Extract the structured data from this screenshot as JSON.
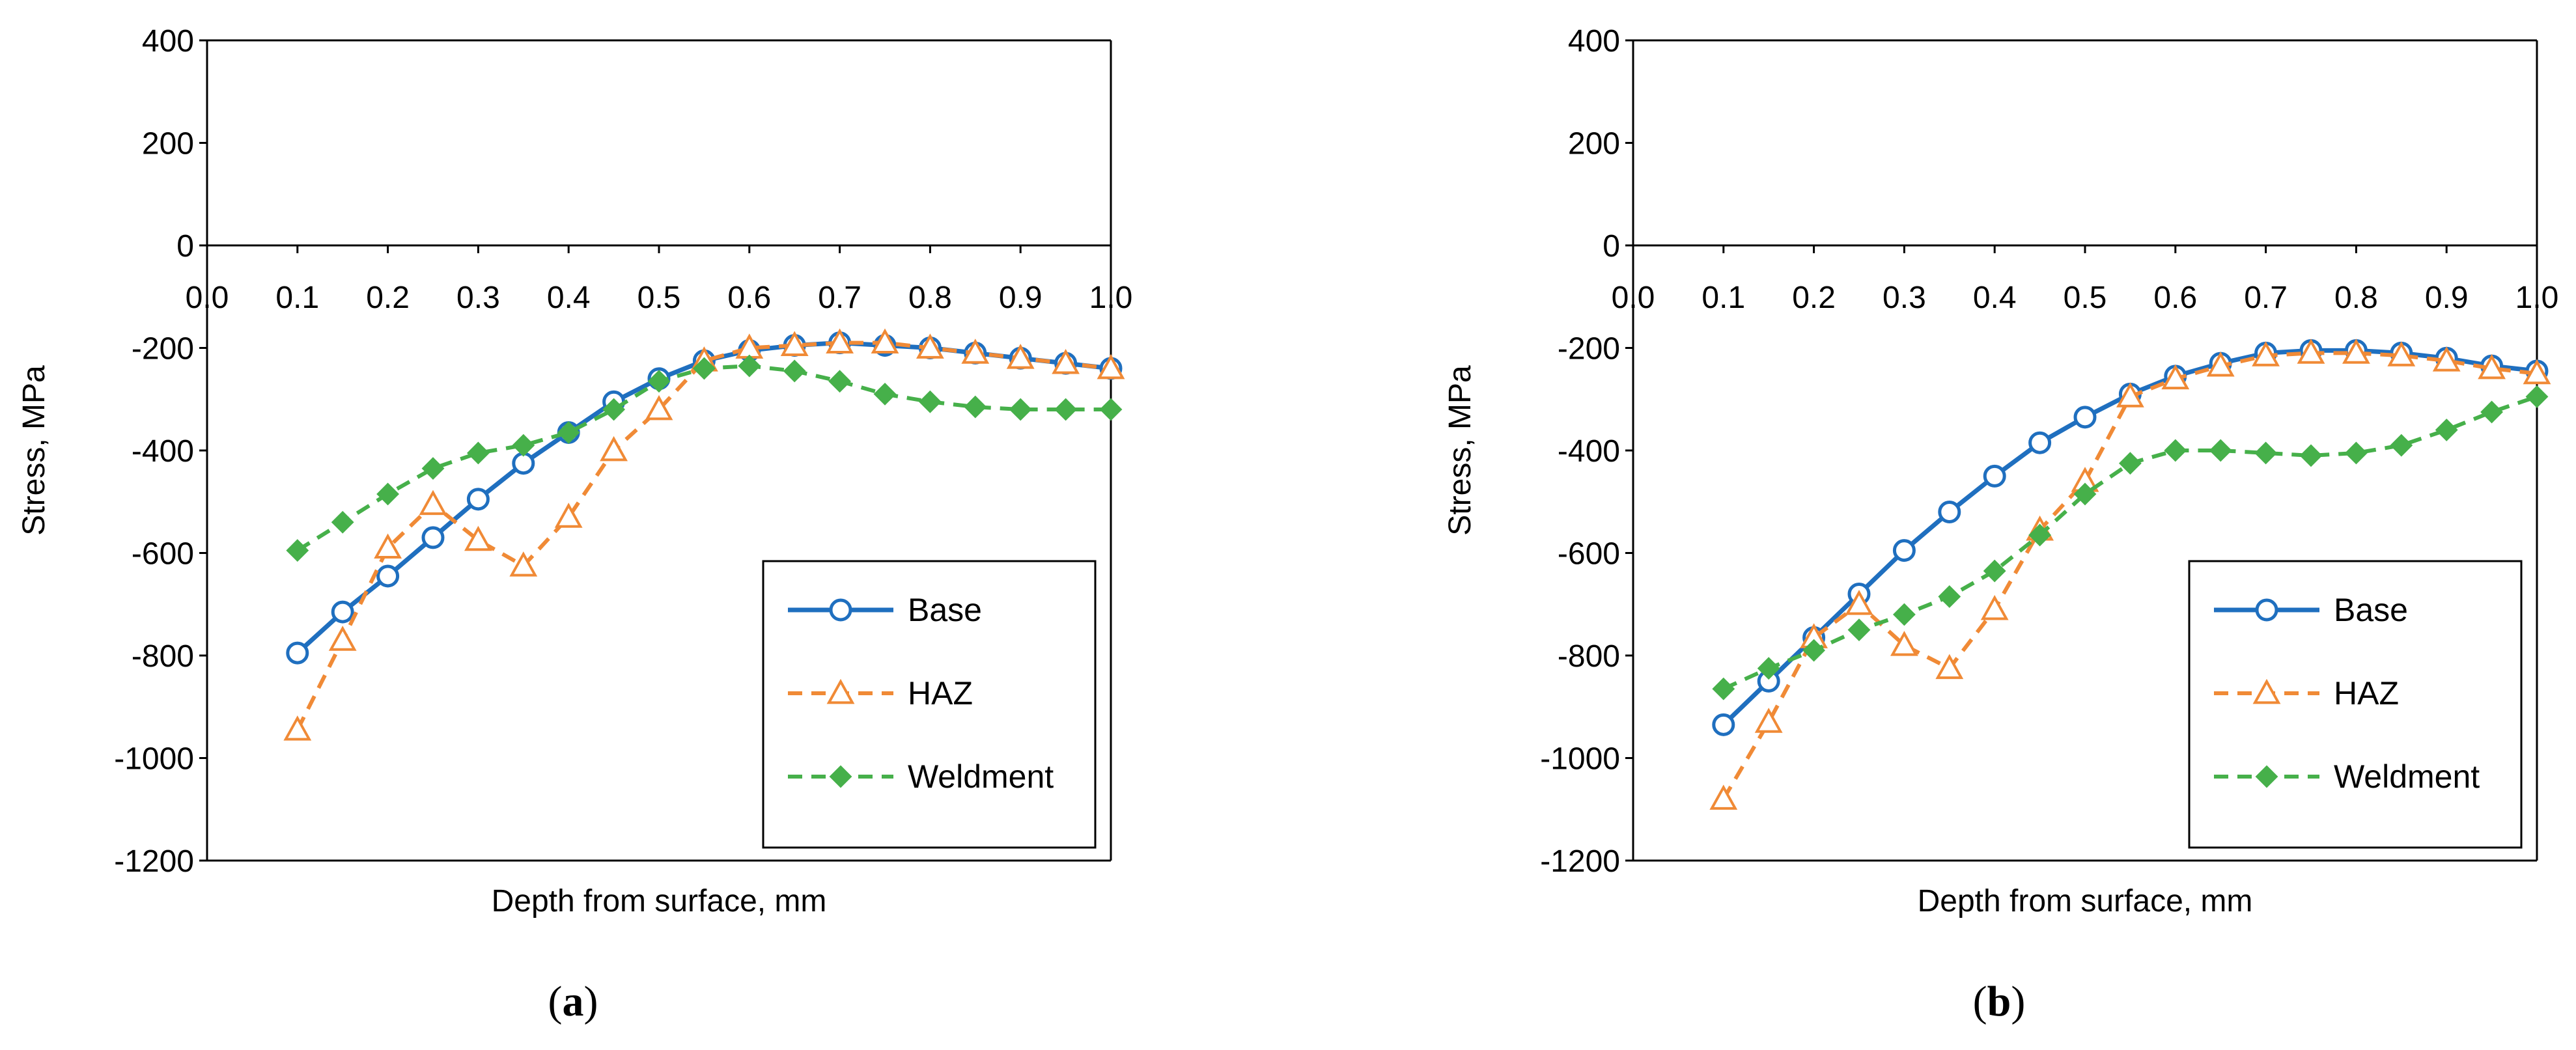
{
  "chart_data": [
    {
      "type": "line",
      "panel_label": "a",
      "title": "",
      "xlabel": "Depth from surface, mm",
      "ylabel": "Stress, MPa",
      "xlim": [
        0.0,
        1.0
      ],
      "ylim": [
        -1200,
        400
      ],
      "x_ticks": [
        "0.0",
        "0.1",
        "0.2",
        "0.3",
        "0.4",
        "0.5",
        "0.6",
        "0.7",
        "0.8",
        "0.9",
        "1.0"
      ],
      "y_ticks": [
        "400",
        "200",
        "0",
        "-200",
        "-400",
        "-600",
        "-800",
        "-1000",
        "-1200"
      ],
      "grid": false,
      "legend_position": "bottom-right",
      "series": [
        {
          "name": "Base",
          "color": "#1f6fbf",
          "marker": "open-circle",
          "line": "solid",
          "x": [
            0.1,
            0.15,
            0.2,
            0.25,
            0.3,
            0.35,
            0.4,
            0.45,
            0.5,
            0.55,
            0.6,
            0.65,
            0.7,
            0.75,
            0.8,
            0.85,
            0.9,
            0.95,
            1.0
          ],
          "values": [
            -795,
            -715,
            -645,
            -570,
            -495,
            -425,
            -365,
            -305,
            -260,
            -225,
            -205,
            -195,
            -190,
            -195,
            -200,
            -210,
            -220,
            -230,
            -240
          ]
        },
        {
          "name": "HAZ",
          "color": "#f08a36",
          "marker": "open-triangle",
          "line": "dashed",
          "x": [
            0.1,
            0.15,
            0.2,
            0.25,
            0.3,
            0.35,
            0.4,
            0.45,
            0.5,
            0.55,
            0.6,
            0.65,
            0.7,
            0.75,
            0.8,
            0.85,
            0.9,
            0.95,
            1.0
          ],
          "values": [
            -945,
            -770,
            -590,
            -505,
            -575,
            -625,
            -530,
            -400,
            -320,
            -225,
            -200,
            -195,
            -190,
            -190,
            -200,
            -210,
            -220,
            -230,
            -240
          ]
        },
        {
          "name": "Weldment",
          "color": "#46b04a",
          "marker": "filled-diamond",
          "line": "dashed",
          "x": [
            0.1,
            0.15,
            0.2,
            0.25,
            0.3,
            0.35,
            0.4,
            0.45,
            0.5,
            0.55,
            0.6,
            0.65,
            0.7,
            0.75,
            0.8,
            0.85,
            0.9,
            0.95,
            1.0
          ],
          "values": [
            -595,
            -540,
            -485,
            -435,
            -405,
            -390,
            -365,
            -320,
            -265,
            -240,
            -235,
            -245,
            -265,
            -290,
            -305,
            -315,
            -320,
            -320,
            -320
          ]
        }
      ]
    },
    {
      "type": "line",
      "panel_label": "b",
      "title": "",
      "xlabel": "Depth from surface, mm",
      "ylabel": "Stress, MPa",
      "xlim": [
        0.0,
        1.0
      ],
      "ylim": [
        -1200,
        400
      ],
      "x_ticks": [
        "0.0",
        "0.1",
        "0.2",
        "0.3",
        "0.4",
        "0.5",
        "0.6",
        "0.7",
        "0.8",
        "0.9",
        "1.0"
      ],
      "y_ticks": [
        "400",
        "200",
        "0",
        "-200",
        "-400",
        "-600",
        "-800",
        "-1000",
        "-1200"
      ],
      "grid": false,
      "legend_position": "bottom-right",
      "series": [
        {
          "name": "Base",
          "color": "#1f6fbf",
          "marker": "open-circle",
          "line": "solid",
          "x": [
            0.1,
            0.15,
            0.2,
            0.25,
            0.3,
            0.35,
            0.4,
            0.45,
            0.5,
            0.55,
            0.6,
            0.65,
            0.7,
            0.75,
            0.8,
            0.85,
            0.9,
            0.95,
            1.0
          ],
          "values": [
            -935,
            -850,
            -765,
            -680,
            -595,
            -520,
            -450,
            -385,
            -335,
            -290,
            -255,
            -230,
            -210,
            -205,
            -205,
            -210,
            -220,
            -235,
            -245
          ]
        },
        {
          "name": "HAZ",
          "color": "#f08a36",
          "marker": "open-triangle",
          "line": "dashed",
          "x": [
            0.1,
            0.15,
            0.2,
            0.25,
            0.3,
            0.35,
            0.4,
            0.45,
            0.5,
            0.55,
            0.6,
            0.65,
            0.7,
            0.75,
            0.8,
            0.85,
            0.9,
            0.95,
            1.0
          ],
          "values": [
            -1080,
            -930,
            -765,
            -700,
            -780,
            -825,
            -710,
            -555,
            -460,
            -295,
            -260,
            -235,
            -215,
            -210,
            -210,
            -215,
            -225,
            -240,
            -250
          ]
        },
        {
          "name": "Weldment",
          "color": "#46b04a",
          "marker": "filled-diamond",
          "line": "dashed",
          "x": [
            0.1,
            0.15,
            0.2,
            0.25,
            0.3,
            0.35,
            0.4,
            0.45,
            0.5,
            0.55,
            0.6,
            0.65,
            0.7,
            0.75,
            0.8,
            0.85,
            0.9,
            0.95,
            1.0
          ],
          "values": [
            -865,
            -825,
            -790,
            -750,
            -720,
            -685,
            -635,
            -565,
            -485,
            -425,
            -400,
            -400,
            -405,
            -410,
            -405,
            -390,
            -360,
            -325,
            -295
          ]
        }
      ]
    }
  ]
}
